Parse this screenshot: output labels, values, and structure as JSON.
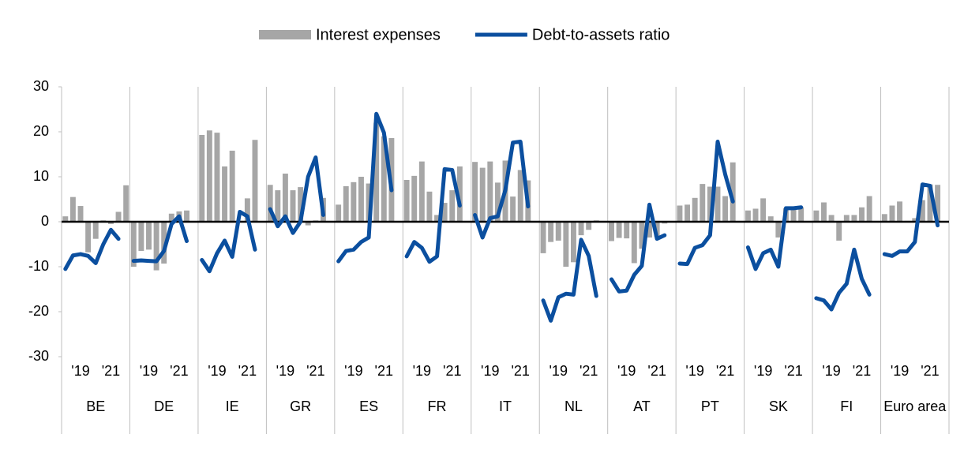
{
  "chart_data": {
    "type": "bar-line",
    "groups": [
      "BE",
      "DE",
      "IE",
      "GR",
      "ES",
      "FR",
      "IT",
      "NL",
      "AT",
      "PT",
      "SK",
      "FI",
      "Euro area"
    ],
    "categories": [
      null,
      null,
      "'19",
      null,
      null,
      null,
      "'21",
      null,
      null,
      null,
      null,
      "'19",
      null,
      null,
      null,
      "'21",
      null,
      null,
      null,
      null,
      "'19",
      null,
      null,
      null,
      "'21",
      null,
      null,
      null,
      null,
      "'19",
      null,
      null,
      null,
      "'21",
      null,
      null,
      null,
      null,
      "'19",
      null,
      null,
      null,
      "'21",
      null,
      null,
      null,
      null,
      "'19",
      null,
      null,
      null,
      "'21",
      null,
      null,
      null,
      null,
      "'19",
      null,
      null,
      null,
      "'21",
      null,
      null,
      null,
      null,
      "'19",
      null,
      null,
      null,
      "'21",
      null,
      null,
      null,
      null,
      "'19",
      null,
      null,
      null,
      "'21",
      null,
      null,
      null,
      null,
      "'19",
      null,
      null,
      null,
      "'21",
      null,
      null,
      null,
      null,
      "'19",
      null,
      null,
      null,
      "'21",
      null,
      null,
      null,
      null,
      "'19",
      null,
      null,
      null,
      "'21",
      null,
      null,
      null,
      null,
      "'19",
      null,
      null,
      null,
      "'21",
      null,
      null
    ],
    "series": [
      {
        "name": "Interest expenses",
        "type": "bar",
        "color": "#a6a6a6",
        "values": [
          1.2,
          5.5,
          3.5,
          -6.8,
          -3.8,
          0.3,
          -0.5,
          2.2,
          8.1,
          -10,
          -6.5,
          -6.2,
          -10.8,
          -9.3,
          1.8,
          2.3,
          2.5,
          null,
          19.3,
          20.3,
          19.8,
          12.3,
          15.8,
          0.2,
          5.2,
          18.2,
          null,
          8.2,
          7,
          10.7,
          7,
          7.7,
          -0.8,
          0.3,
          5.3,
          null,
          3.8,
          7.9,
          8.8,
          10,
          8.5,
          22,
          19,
          18.6,
          null,
          9.3,
          10.2,
          13.4,
          6.7,
          1.5,
          4.2,
          7,
          12.3,
          null,
          13.3,
          12,
          13.4,
          8.7,
          13.6,
          5.6,
          11.5,
          9.2,
          null,
          -7,
          -4.5,
          -4.2,
          -10,
          -9,
          -3,
          -1.8,
          0.3,
          null,
          -4.3,
          -3.6,
          -3.7,
          -9.2,
          -6,
          -3.5,
          -3.3,
          -0.4,
          null,
          3.6,
          3.8,
          5.3,
          8.4,
          7.8,
          7.8,
          5.7,
          13.2,
          null,
          2.5,
          2.9,
          5.2,
          1.2,
          -3.5,
          3,
          2.7,
          3.2,
          null,
          2.5,
          4.3,
          1.5,
          -4.2,
          1.5,
          1.5,
          3.2,
          5.7,
          null,
          1.7,
          3.6,
          4.5,
          0.2,
          0.8,
          4.8,
          8.3,
          8.2,
          null
        ]
      },
      {
        "name": "Debt-to-assets ratio",
        "type": "line",
        "color": "#0b4f9f",
        "values": [
          -10.5,
          -7.5,
          -7.2,
          -7.6,
          -9.2,
          -5,
          -1.8,
          -3.8,
          null,
          -8.7,
          -8.6,
          -8.7,
          -8.8,
          -6.5,
          -0.5,
          1.2,
          -4.3,
          null,
          -8.5,
          -11,
          -7,
          -4.2,
          -7.8,
          2.2,
          1.2,
          -6.2,
          null,
          2.8,
          -1,
          1.2,
          -2.5,
          0,
          10,
          14.3,
          1.5,
          null,
          -8.8,
          -6.5,
          -6.2,
          -4.5,
          -3.5,
          24,
          19.8,
          7,
          null,
          -7.7,
          -4.5,
          -5.8,
          -8.9,
          -7.7,
          11.7,
          11.5,
          3.6,
          null,
          1.5,
          -3.5,
          0.8,
          1.2,
          7,
          17.6,
          17.8,
          3.4,
          null,
          -17.5,
          -22,
          -16.8,
          -16,
          -16.2,
          -4,
          -7.6,
          -16.5,
          null,
          -12.8,
          -15.5,
          -15.3,
          -11.8,
          -9.8,
          3.8,
          -3.8,
          -3,
          null,
          -9.3,
          -9.4,
          -5.8,
          -5.2,
          -3,
          17.8,
          10.5,
          4.5,
          null,
          -5.7,
          -10.5,
          -7,
          -6.2,
          -10,
          3,
          3,
          3.2,
          null,
          -17,
          -17.5,
          -19.5,
          -15.8,
          -13.8,
          -6.2,
          -12.7,
          -16.2,
          null,
          -7.2,
          -7.6,
          -6.6,
          -6.6,
          -4.5,
          8.3,
          8,
          -0.8,
          null
        ]
      }
    ],
    "ylim": [
      -30,
      30
    ],
    "yticks": [
      -30,
      -20,
      -10,
      0,
      10,
      20,
      30
    ],
    "grid": false,
    "legend": "top"
  }
}
